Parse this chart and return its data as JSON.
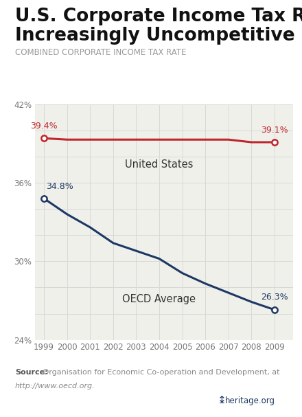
{
  "title_line1": "U.S. Corporate Income Tax Rate Is",
  "title_line2": "Increasingly Uncompetitive",
  "subtitle": "COMBINED CORPORATE INCOME TAX RATE",
  "years": [
    1999,
    2000,
    2001,
    2002,
    2003,
    2004,
    2005,
    2006,
    2007,
    2008,
    2009
  ],
  "us_values": [
    39.4,
    39.3,
    39.3,
    39.3,
    39.3,
    39.3,
    39.3,
    39.3,
    39.3,
    39.1,
    39.1
  ],
  "oecd_values": [
    34.8,
    33.6,
    32.6,
    31.4,
    30.8,
    30.2,
    29.1,
    28.3,
    27.6,
    26.9,
    26.3
  ],
  "us_label": "United States",
  "oecd_label": "OECD Average",
  "us_color": "#c0272d",
  "oecd_color": "#1e3864",
  "us_start_label": "39.4%",
  "us_end_label": "39.1%",
  "oecd_start_label": "34.8%",
  "oecd_end_label": "26.3%",
  "ylim": [
    24,
    42
  ],
  "yticks": [
    24,
    26,
    28,
    30,
    32,
    34,
    36,
    38,
    40,
    42
  ],
  "ytick_labels": [
    "24%",
    "",
    "",
    "30%",
    "",
    "",
    "36%",
    "",
    "",
    "42%"
  ],
  "source_bold": "Source:",
  "source_normal": " Organisation for Economic Co-operation and Development, at",
  "source_italic": "http://www.oecd.org.",
  "bg_color": "#ffffff",
  "chart_bg_color": "#f0f0eb",
  "grid_color": "#d8d8d8",
  "title_fontsize": 19,
  "subtitle_fontsize": 8.5,
  "tick_fontsize": 8.5,
  "annotation_fontsize": 9,
  "line_label_fontsize": 10.5,
  "source_fontsize": 8,
  "line_width": 2.2,
  "marker_size": 6
}
